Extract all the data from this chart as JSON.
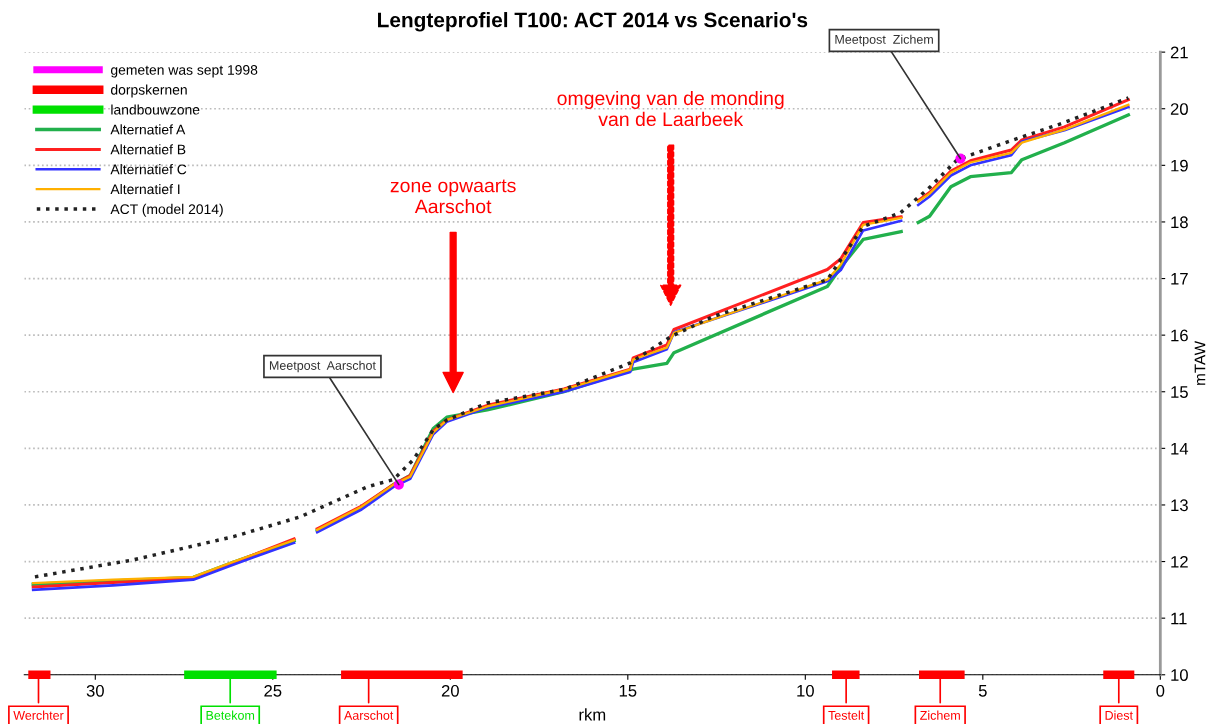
{
  "chart_data": {
    "type": "line",
    "title": "Lengteprofiel T100: ACT 2014 vs Scenario's",
    "xlabel": "rkm",
    "ylabel": "mTAW",
    "xlim": [
      32,
      0
    ],
    "xticks": [
      30,
      25,
      20,
      15,
      10,
      5,
      0
    ],
    "ylim": [
      10,
      21
    ],
    "yticks": [
      10,
      11,
      12,
      13,
      14,
      15,
      16,
      17,
      18,
      19,
      20,
      21
    ],
    "grid": "y",
    "legend": "top left",
    "series": [
      {
        "name": "gemeten was sept 1998",
        "type": "scatter",
        "marker": "circle",
        "color": "#ff00ff",
        "x": [
          21.45,
          5.63
        ],
        "values": [
          13.36,
          19.12
        ]
      },
      {
        "name": "dorpskernen",
        "color": "#ff0000",
        "x": [
          31.77,
          31.38,
          null,
          22.96,
          19.77,
          null,
          9.13,
          8.59,
          null,
          6.68,
          5.63,
          null,
          1.49,
          0.85
        ],
        "values": [
          10,
          10,
          null,
          10,
          10,
          null,
          10,
          10,
          null,
          10,
          10,
          null,
          10,
          10
        ]
      },
      {
        "name": "landbouwzone",
        "color": "#00e000",
        "x": [
          27.38,
          25.01
        ],
        "values": [
          10,
          10
        ]
      },
      {
        "name": "Alternatief A",
        "color": "#22b04c",
        "x": [
          31.75,
          29.5,
          27.24,
          26.1,
          24.4,
          24.1,
          23.75,
          22.5,
          21.6,
          21.13,
          20.48,
          20.1,
          18.96,
          16.8,
          14.93,
          14.85,
          13.9,
          13.7,
          9.38,
          9.0,
          8.37,
          7.3,
          7.05,
          6.82,
          6.5,
          5.9,
          5.35,
          4.2,
          3.9,
          2.7,
          0.9
        ],
        "values": [
          11.6,
          11.66,
          11.72,
          11.99,
          12.37,
          null,
          12.55,
          12.96,
          13.36,
          13.52,
          14.35,
          14.55,
          14.68,
          15.0,
          15.38,
          15.4,
          15.5,
          15.69,
          16.86,
          17.2,
          17.69,
          17.83,
          null,
          17.99,
          18.1,
          18.62,
          18.8,
          18.87,
          19.1,
          19.4,
          19.89
        ]
      },
      {
        "name": "Alternatief B",
        "color": "#ff2020",
        "x": [
          31.75,
          29.5,
          27.24,
          26.1,
          24.4,
          24.1,
          23.75,
          22.5,
          21.6,
          21.13,
          20.48,
          20.1,
          18.96,
          16.8,
          14.93,
          14.85,
          13.9,
          13.7,
          9.38,
          9.0,
          8.37,
          7.3,
          7.05,
          6.82,
          6.5,
          5.9,
          5.35,
          4.2,
          3.9,
          2.7,
          0.9
        ],
        "values": [
          11.55,
          11.63,
          11.7,
          11.98,
          12.4,
          null,
          12.58,
          12.98,
          13.36,
          13.52,
          14.3,
          14.5,
          14.76,
          15.05,
          15.4,
          15.6,
          15.83,
          16.1,
          17.16,
          17.35,
          17.99,
          18.09,
          null,
          18.38,
          18.52,
          18.9,
          19.08,
          19.27,
          19.45,
          19.68,
          20.16
        ]
      },
      {
        "name": "Alternatief C",
        "color": "#3333ff",
        "x": [
          31.75,
          29.5,
          27.24,
          26.1,
          24.4,
          24.1,
          23.75,
          22.5,
          21.6,
          21.13,
          20.48,
          20.1,
          18.96,
          16.8,
          14.93,
          14.85,
          13.9,
          13.7,
          9.38,
          9.0,
          8.37,
          7.3,
          7.05,
          6.82,
          6.5,
          5.9,
          5.35,
          4.2,
          3.9,
          2.7,
          0.9
        ],
        "values": [
          11.5,
          11.58,
          11.68,
          11.95,
          12.33,
          null,
          12.52,
          12.92,
          13.32,
          13.46,
          14.25,
          14.47,
          14.72,
          15.0,
          15.35,
          15.52,
          15.75,
          16.05,
          16.95,
          17.15,
          17.85,
          18.02,
          null,
          18.3,
          18.45,
          18.82,
          19.0,
          19.18,
          19.42,
          19.62,
          20.03
        ]
      },
      {
        "name": "Alternatief I",
        "color": "#ffb000",
        "x": [
          31.75,
          29.5,
          27.24,
          26.1,
          24.4,
          24.1,
          23.75,
          22.5,
          21.6,
          21.13,
          20.48,
          20.1,
          18.96,
          16.8,
          14.93,
          14.85,
          13.9,
          13.7,
          9.38,
          9.0,
          8.37,
          7.3,
          7.05,
          6.82,
          6.5,
          5.9,
          5.35,
          4.2,
          3.9,
          2.7,
          0.9
        ],
        "values": [
          11.62,
          11.68,
          11.73,
          12.0,
          12.38,
          null,
          12.56,
          12.97,
          13.36,
          13.5,
          14.28,
          14.5,
          14.74,
          15.04,
          15.39,
          15.57,
          15.78,
          16.04,
          16.98,
          17.25,
          17.95,
          18.07,
          null,
          18.36,
          18.5,
          18.87,
          19.05,
          19.22,
          19.4,
          19.63,
          20.07
        ]
      },
      {
        "name": "ACT (model 2014)",
        "line_style": "dotted",
        "color": "#222222",
        "x": [
          31.7,
          28.93,
          26.11,
          24.23,
          22.34,
          21.6,
          21.04,
          20.48,
          20.1,
          18.96,
          16.8,
          14.93,
          13.8,
          12.59,
          9.38,
          8.37,
          7.32,
          6.48,
          5.72,
          4.14,
          2.73,
          0.9
        ],
        "values": [
          11.73,
          12.03,
          12.44,
          12.79,
          13.32,
          13.45,
          13.8,
          14.33,
          14.5,
          14.8,
          15.04,
          15.51,
          15.97,
          16.33,
          16.98,
          17.92,
          18.16,
          18.62,
          19.1,
          19.45,
          19.75,
          20.19
        ]
      }
    ],
    "annotations": [
      "zone opwaarts\nAarschot",
      "omgeving van de monding\nvan de Laarbeek",
      {
        "text": "Meetpost  Aarschot",
        "x": 21.45,
        "y": 13.36
      },
      {
        "text": "Meetpost  Zichem",
        "x": 5.63,
        "y": 19.12
      },
      {
        "text": "Werchter",
        "x": 31.6,
        "y": 10
      },
      {
        "text": "Betekom",
        "x": 26.2,
        "y": 10
      },
      {
        "text": "Aarschot",
        "x": 22.3,
        "y": 10
      },
      {
        "text": "Testelt",
        "x": 8.85,
        "y": 10
      },
      {
        "text": "Zichem",
        "x": 6.2,
        "y": 10
      },
      {
        "text": "Diest",
        "x": 1.17,
        "y": 10
      }
    ]
  }
}
